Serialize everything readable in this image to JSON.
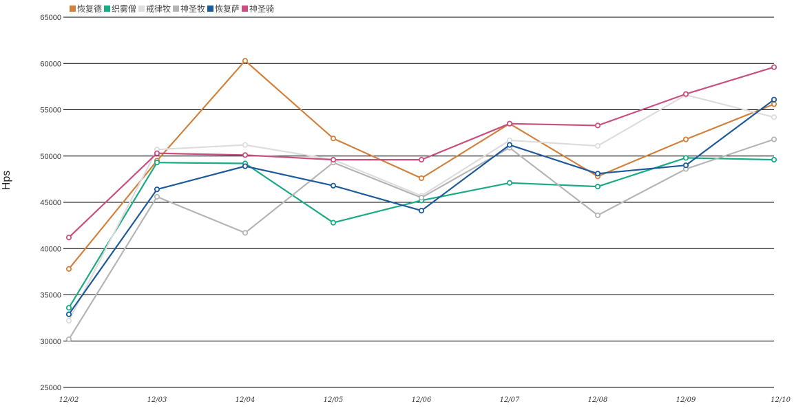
{
  "chart_data": {
    "type": "line",
    "title": "",
    "xlabel": "",
    "ylabel": "Hps",
    "ylim": [
      25000,
      65000
    ],
    "yticks": [
      25000,
      30000,
      35000,
      40000,
      45000,
      50000,
      55000,
      60000,
      65000
    ],
    "grid": true,
    "legend_position": "top-left",
    "categories": [
      "12/02",
      "12/03",
      "12/04",
      "12/05",
      "12/06",
      "12/07",
      "12/08",
      "12/09",
      "12/10"
    ],
    "series": [
      {
        "name": "恢复德",
        "color": "#d2813d",
        "values": [
          37800,
          49500,
          60300,
          51900,
          47600,
          53500,
          47800,
          51800,
          55600
        ]
      },
      {
        "name": "织雾僧",
        "color": "#1aaa86",
        "values": [
          33600,
          49300,
          49200,
          42800,
          45200,
          47100,
          46700,
          49800,
          49600
        ]
      },
      {
        "name": "戒律牧",
        "color": "#dddddd",
        "values": [
          32200,
          50700,
          51200,
          49600,
          45700,
          51700,
          51100,
          56600,
          54200
        ]
      },
      {
        "name": "神圣牧",
        "color": "#b5b5b5",
        "values": [
          30200,
          45600,
          41700,
          49300,
          45500,
          50900,
          43600,
          48600,
          51800
        ]
      },
      {
        "name": "恢复萨",
        "color": "#1c5a9a",
        "values": [
          32900,
          46400,
          48900,
          46800,
          44100,
          51200,
          48100,
          49000,
          56100
        ]
      },
      {
        "name": "神圣骑",
        "color": "#c84f80",
        "values": [
          41200,
          50300,
          50100,
          49600,
          49600,
          53500,
          53300,
          56700,
          59600
        ]
      }
    ]
  }
}
